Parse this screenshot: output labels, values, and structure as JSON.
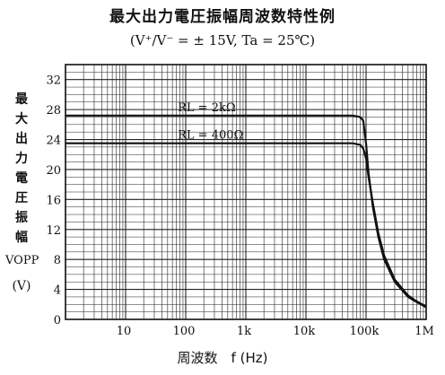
{
  "title": "最大出力電圧振幅周波数特性例",
  "subtitle": "(V⁺/V⁻ = ± 15V,  Ta = 25℃)",
  "ylabel_chars": [
    "最",
    "大",
    "出",
    "力",
    "電",
    "圧",
    "振",
    "幅"
  ],
  "ylabel_unit": "VOPP",
  "ylabel_unit2": "(V)",
  "xlabel": "周波数　f (Hz)",
  "chart_data": {
    "type": "line",
    "x_scale": "log",
    "xlim": [
      1,
      1000000
    ],
    "ylim": [
      0,
      34
    ],
    "grid": true,
    "x_ticks": [
      {
        "value": 10,
        "label": "10"
      },
      {
        "value": 100,
        "label": "100"
      },
      {
        "value": 1000,
        "label": "1k"
      },
      {
        "value": 10000,
        "label": "10k"
      },
      {
        "value": 100000,
        "label": "100k"
      },
      {
        "value": 1000000,
        "label": "1M"
      }
    ],
    "y_ticks": [
      0,
      4,
      8,
      12,
      16,
      20,
      24,
      28,
      32
    ],
    "series": [
      {
        "name": "RL = 2kΩ",
        "x": [
          1,
          10,
          100,
          1000,
          10000,
          60000,
          80000,
          90000,
          100000,
          110000,
          130000,
          160000,
          200000,
          300000,
          500000,
          700000,
          1000000
        ],
        "y": [
          27.2,
          27.2,
          27.2,
          27.2,
          27.2,
          27.2,
          27.0,
          26.5,
          23.5,
          19.5,
          15.0,
          11.0,
          8.0,
          5.0,
          3.0,
          2.3,
          1.6
        ]
      },
      {
        "name": "RL = 400Ω",
        "x": [
          1,
          10,
          100,
          1000,
          10000,
          60000,
          80000,
          90000,
          100000,
          110000,
          130000,
          160000,
          200000,
          300000,
          500000,
          700000,
          1000000
        ],
        "y": [
          23.5,
          23.5,
          23.5,
          23.5,
          23.5,
          23.5,
          23.3,
          22.8,
          21.5,
          19.0,
          15.5,
          11.5,
          8.5,
          5.3,
          3.2,
          2.4,
          1.7
        ]
      }
    ]
  }
}
